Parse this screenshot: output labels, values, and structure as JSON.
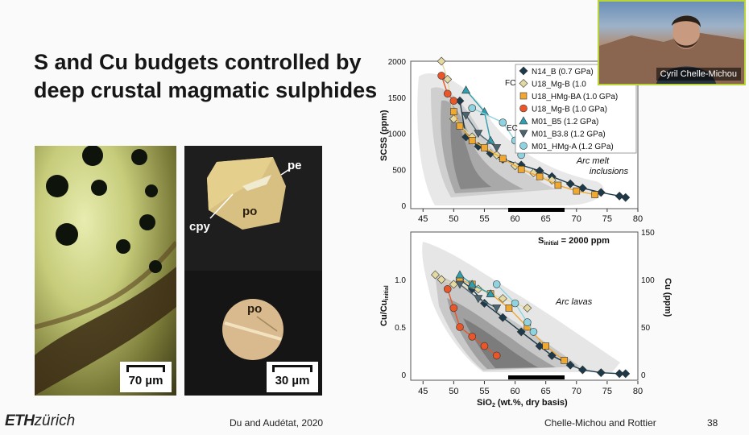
{
  "slide": {
    "title": "S and Cu budgets controlled by deep crustal magmatic sulphides",
    "left_photo": {
      "scale_label": "70 µm"
    },
    "right_photo": {
      "labels": [
        "pe",
        "cpy",
        "po",
        "po"
      ],
      "scale_label": "30 µm"
    },
    "citation_left": "Du and Audétat, 2020",
    "citation_right": "Chelle-Michou and Rottier",
    "page_number": "38",
    "logo": "ETHzürich"
  },
  "video": {
    "participant_name": "Cyril Chelle-Michou"
  },
  "colors": {
    "N14_B": "#1c3a4a",
    "U18_Mg_B": "#e5d9a3",
    "U18_HMg_BA": "#f0a830",
    "U18_Mg_B_orange": "#e8562a",
    "M01_B5": "#2f9fb0",
    "M01_B3_8": "#4a6470",
    "M01_HMg_A": "#8fd3e0"
  },
  "chart_data": [
    {
      "type": "scatter",
      "ylabel": "SCSS (ppm)",
      "ylim": [
        0,
        2000
      ],
      "yticks": [
        "0",
        "500",
        "1000",
        "1500",
        "2000"
      ],
      "xlim": [
        43,
        80
      ],
      "xticks": [
        "45",
        "50",
        "55",
        "60",
        "65",
        "70",
        "75",
        "80"
      ],
      "legend": [
        {
          "name": "N14_B (0.7 GPa)",
          "marker": "diamond",
          "color": "#1c3a4a"
        },
        {
          "name": "U18_Mg-B (1.0",
          "marker": "diamond",
          "color": "#e5d9a3"
        },
        {
          "name": "U18_HMg-BA (1.0 GPa)",
          "marker": "square",
          "color": "#f0a830"
        },
        {
          "name": "U18_Mg-B (1.0 GPa)",
          "marker": "circle",
          "color": "#e8562a"
        },
        {
          "name": "M01_B5 (1.2 GPa)",
          "marker": "triangle-up",
          "color": "#2f9fb0"
        },
        {
          "name": "M01_B3.8 (1.2 GPa)",
          "marker": "triangle-down",
          "color": "#4a6470"
        },
        {
          "name": "M01_HMg-A (1.2 GPa)",
          "marker": "circle",
          "color": "#8fd3e0"
        }
      ],
      "group_labels": [
        "FC",
        "EC"
      ],
      "annotation": "Arc melt\ninclusions",
      "series": [
        {
          "name": "N14_B (0.7 GPa)",
          "marker": "diamond",
          "color": "#1c3a4a",
          "x": [
            51,
            52,
            54,
            56,
            58,
            61,
            64,
            66,
            69,
            71,
            74,
            77,
            78
          ],
          "y": [
            1450,
            950,
            820,
            720,
            640,
            560,
            480,
            400,
            300,
            240,
            180,
            130,
            110
          ]
        },
        {
          "name": "U18_Mg-B (1.0",
          "marker": "diamond",
          "color": "#e5d9a3",
          "x": [
            48,
            49,
            50,
            53,
            57,
            60,
            63,
            66
          ],
          "y": [
            2000,
            1750,
            1200,
            950,
            700,
            550,
            450,
            350
          ]
        },
        {
          "name": "U18_HMg-BA (1.0 GPa)",
          "marker": "square",
          "color": "#f0a830",
          "x": [
            50,
            51,
            53,
            55,
            58,
            61,
            64,
            67,
            70,
            73
          ],
          "y": [
            1300,
            1100,
            900,
            800,
            650,
            500,
            400,
            280,
            200,
            150
          ]
        },
        {
          "name": "U18_Mg-B (1.0 GPa)",
          "marker": "circle",
          "color": "#e8562a",
          "x": [
            48,
            49,
            50
          ],
          "y": [
            1800,
            1550,
            1450
          ]
        },
        {
          "name": "M01_B5 (1.2 GPa)",
          "marker": "triangle-up",
          "color": "#2f9fb0",
          "x": [
            52,
            55,
            56
          ],
          "y": [
            1600,
            1300,
            900
          ]
        },
        {
          "name": "M01_B3.8 (1.2 GPa)",
          "marker": "triangle-down",
          "color": "#4a6470",
          "x": [
            52,
            54,
            57
          ],
          "y": [
            1250,
            1000,
            800
          ]
        },
        {
          "name": "M01_HMg-A (1.2 GPa)",
          "marker": "circle",
          "color": "#8fd3e0",
          "x": [
            53,
            58,
            60,
            61
          ],
          "y": [
            1350,
            1150,
            900,
            700
          ]
        }
      ]
    },
    {
      "type": "scatter",
      "title": "Sinitial = 2000 ppm",
      "xlabel": "SiO2 (wt.%, dry basis)",
      "ylabel": "Cu/Cuinitial",
      "ylabel_right": "Cu (ppm)",
      "ylim": [
        0,
        1.5
      ],
      "yticks": [
        "0",
        "0.5",
        "1.0"
      ],
      "yticks_right": [
        "0",
        "50",
        "100",
        "150"
      ],
      "xlim": [
        43,
        80
      ],
      "xticks": [
        "45",
        "50",
        "55",
        "60",
        "65",
        "70",
        "75",
        "80"
      ],
      "annotation": "Arc lavas",
      "series": [
        {
          "name": "N14_B (0.7 GPa)",
          "marker": "diamond",
          "color": "#1c3a4a",
          "x": [
            51,
            53,
            55,
            58,
            61,
            64,
            66,
            69,
            71,
            74,
            77,
            78
          ],
          "y": [
            1.0,
            0.9,
            0.75,
            0.6,
            0.45,
            0.3,
            0.2,
            0.1,
            0.05,
            0.02,
            0.01,
            0.01
          ]
        },
        {
          "name": "U18_Mg-B (1.0",
          "marker": "diamond",
          "color": "#e5d9a3",
          "x": [
            47,
            48,
            50,
            54,
            58,
            62
          ],
          "y": [
            1.05,
            1.0,
            0.95,
            0.9,
            0.8,
            0.7
          ]
        },
        {
          "name": "U18_HMg-BA (1.0 GPa)",
          "marker": "square",
          "color": "#f0a830",
          "x": [
            51,
            53,
            56,
            59,
            62,
            65,
            68
          ],
          "y": [
            1.0,
            0.95,
            0.85,
            0.7,
            0.5,
            0.3,
            0.15
          ]
        },
        {
          "name": "U18_Mg-B (1.0 GPa)",
          "marker": "circle",
          "color": "#e8562a",
          "x": [
            49,
            50,
            51,
            53,
            55,
            57
          ],
          "y": [
            0.9,
            0.7,
            0.5,
            0.4,
            0.3,
            0.2
          ]
        },
        {
          "name": "M01_B5 (1.2 GPa)",
          "marker": "triangle-up",
          "color": "#2f9fb0",
          "x": [
            51,
            53,
            56
          ],
          "y": [
            1.05,
            0.95,
            0.85
          ]
        },
        {
          "name": "M01_B3.8 (1.2 GPa)",
          "marker": "triangle-down",
          "color": "#4a6470",
          "x": [
            51,
            54,
            57
          ],
          "y": [
            0.95,
            0.8,
            0.7
          ]
        },
        {
          "name": "M01_HMg-A (1.2 GPa)",
          "marker": "circle",
          "color": "#8fd3e0",
          "x": [
            57,
            60,
            62,
            63
          ],
          "y": [
            0.95,
            0.75,
            0.55,
            0.45
          ]
        }
      ]
    }
  ]
}
